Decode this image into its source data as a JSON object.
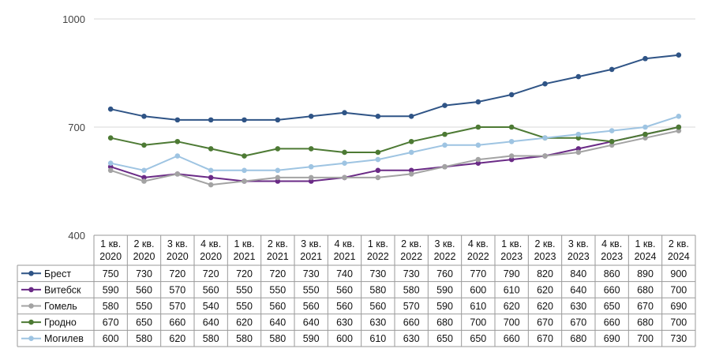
{
  "chart_data": {
    "type": "line",
    "categories": [
      [
        "1 кв.",
        "2020"
      ],
      [
        "2 кв.",
        "2020"
      ],
      [
        "3 кв.",
        "2020"
      ],
      [
        "4 кв.",
        "2020"
      ],
      [
        "1 кв.",
        "2021"
      ],
      [
        "2 кв.",
        "2021"
      ],
      [
        "3 кв.",
        "2021"
      ],
      [
        "4 кв.",
        "2021"
      ],
      [
        "1 кв.",
        "2022"
      ],
      [
        "2 кв.",
        "2022"
      ],
      [
        "3 кв.",
        "2022"
      ],
      [
        "4 кв.",
        "2022"
      ],
      [
        "1 кв.",
        "2023"
      ],
      [
        "2 кв.",
        "2023"
      ],
      [
        "3 кв.",
        "2023"
      ],
      [
        "4 кв.",
        "2023"
      ],
      [
        "1 кв.",
        "2024"
      ],
      [
        "2 кв.",
        "2024"
      ]
    ],
    "series": [
      {
        "name": "Брест",
        "color": "#2f5486",
        "values": [
          750,
          730,
          720,
          720,
          720,
          720,
          730,
          740,
          730,
          730,
          760,
          770,
          790,
          820,
          840,
          860,
          890,
          900
        ]
      },
      {
        "name": "Витебск",
        "color": "#6a2a86",
        "values": [
          590,
          560,
          570,
          560,
          550,
          550,
          550,
          560,
          580,
          580,
          590,
          600,
          610,
          620,
          640,
          660,
          680,
          700
        ]
      },
      {
        "name": "Гомель",
        "color": "#a3a3a3",
        "values": [
          580,
          550,
          570,
          540,
          550,
          560,
          560,
          560,
          560,
          570,
          590,
          610,
          620,
          620,
          630,
          650,
          670,
          690
        ]
      },
      {
        "name": "Гродно",
        "color": "#4d7a34",
        "values": [
          670,
          650,
          660,
          640,
          620,
          640,
          640,
          630,
          630,
          660,
          680,
          700,
          700,
          670,
          670,
          660,
          680,
          700
        ]
      },
      {
        "name": "Могилев",
        "color": "#9ec4e2",
        "values": [
          600,
          580,
          620,
          580,
          580,
          580,
          590,
          600,
          610,
          630,
          650,
          650,
          660,
          670,
          680,
          690,
          700,
          730
        ]
      }
    ],
    "yticks": [
      400,
      700,
      1000
    ],
    "ylim": [
      400,
      1000
    ],
    "grid": true,
    "legend": "table-left",
    "data_table": true
  }
}
